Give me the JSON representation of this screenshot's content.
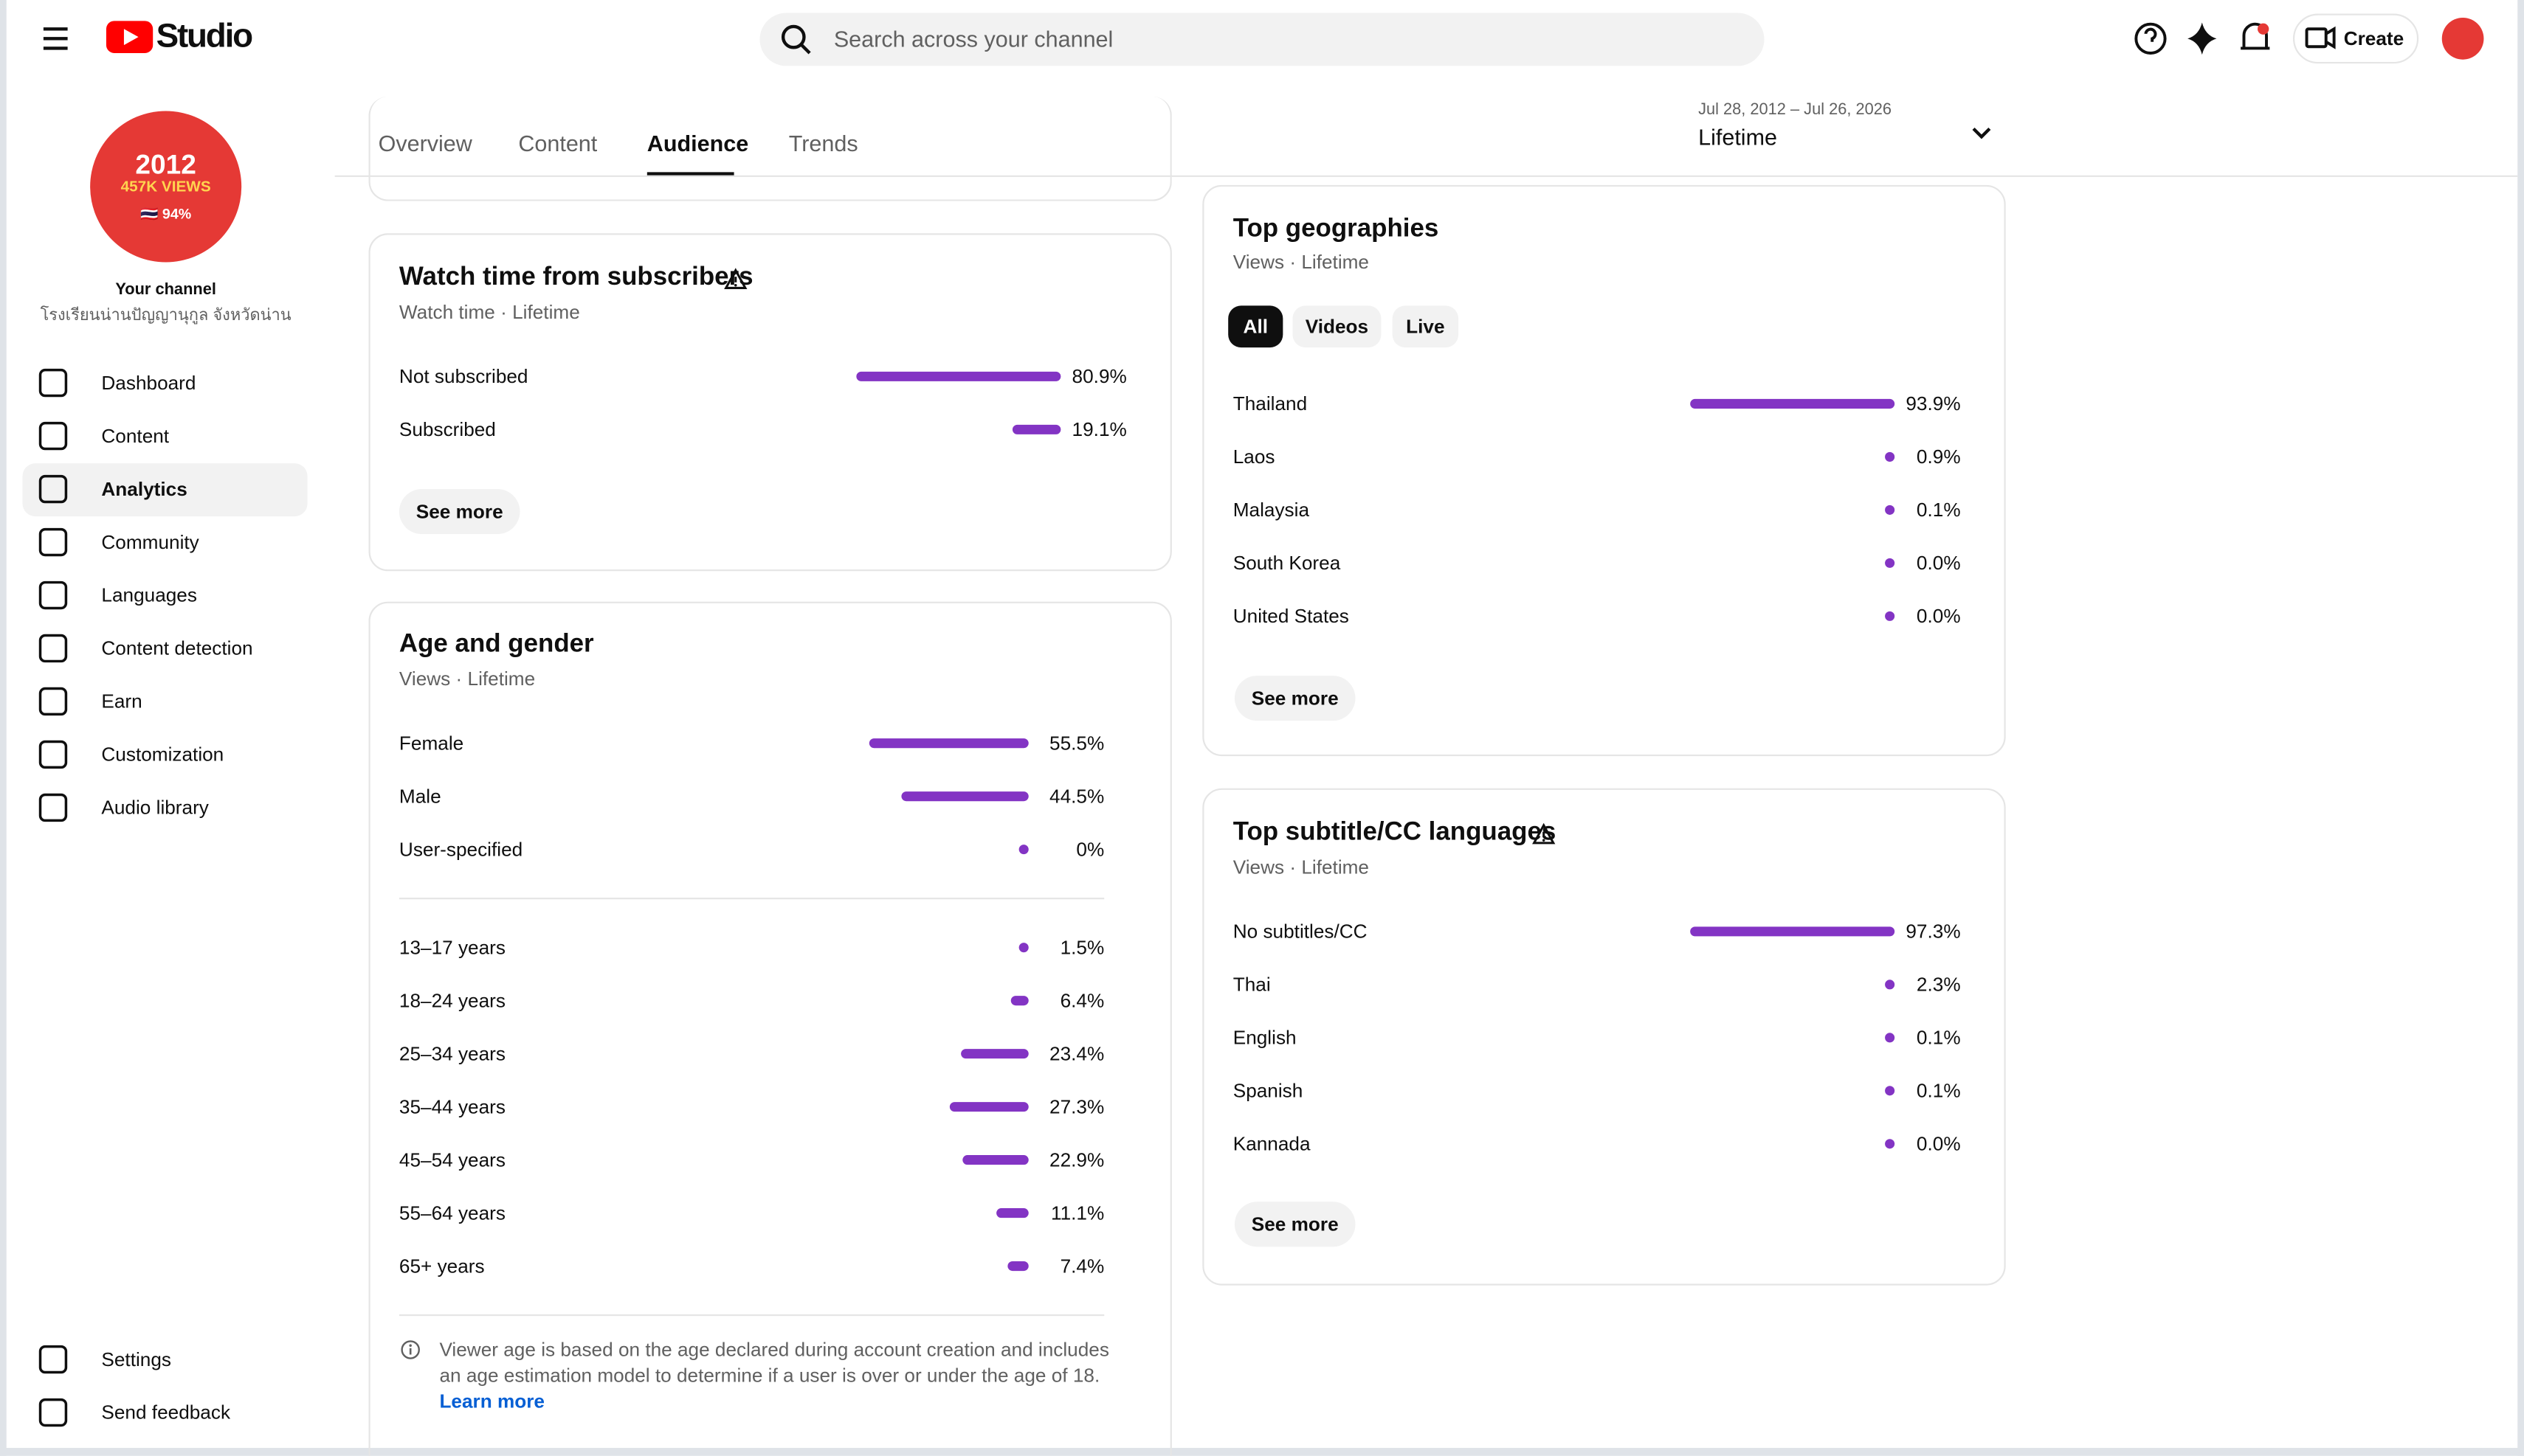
{
  "header": {
    "logo": "Studio",
    "search_placeholder": "Search across your channel",
    "create": "Create"
  },
  "sidebar": {
    "avatar_lines": [
      "2012",
      "457K VIEWS",
      "🇹🇭 94%"
    ],
    "channel_label": "Your channel",
    "channel_name": "โรงเรียนน่านปัญญานุกูล จังหวัดน่าน",
    "nav": [
      "Dashboard",
      "Content",
      "Analytics",
      "Community",
      "Languages",
      "Content detection",
      "Earn",
      "Customization",
      "Audio library"
    ],
    "footer_nav": [
      "Settings",
      "Send feedback"
    ]
  },
  "tabs": [
    "Overview",
    "Content",
    "Audience",
    "Trends"
  ],
  "date_range": {
    "range": "Jul 28, 2012 – Jul 26, 2026",
    "period": "Lifetime"
  },
  "watch_time_subscribers": {
    "title": "Watch time from subscribers",
    "subtitle": "Watch time · Lifetime",
    "rows": [
      {
        "label": "Not subscribed",
        "value": 80.9,
        "value_label": "80.9%"
      },
      {
        "label": "Subscribed",
        "value": 19.1,
        "value_label": "19.1%"
      }
    ],
    "button": "See more"
  },
  "age_gender": {
    "title": "Age and gender",
    "subtitle": "Views · Lifetime",
    "gender_rows": [
      {
        "label": "Female",
        "value": 55.5,
        "value_label": "55.5%"
      },
      {
        "label": "Male",
        "value": 44.5,
        "value_label": "44.5%"
      },
      {
        "label": "User-specified",
        "value": 0,
        "value_label": "0%"
      }
    ],
    "age_rows": [
      {
        "label": "13–17 years",
        "value": 1.5,
        "value_label": "1.5%"
      },
      {
        "label": "18–24 years",
        "value": 6.4,
        "value_label": "6.4%"
      },
      {
        "label": "25–34 years",
        "value": 23.4,
        "value_label": "23.4%"
      },
      {
        "label": "35–44 years",
        "value": 27.3,
        "value_label": "27.3%"
      },
      {
        "label": "45–54 years",
        "value": 22.9,
        "value_label": "22.9%"
      },
      {
        "label": "55–64 years",
        "value": 11.1,
        "value_label": "11.1%"
      },
      {
        "label": "65+ years",
        "value": 7.4,
        "value_label": "7.4%"
      }
    ],
    "note": [
      "Viewer age is based on the age declared during account creation and includes",
      "an age estimation model to determine if a user is over or under the age of 18."
    ],
    "link": "Learn more"
  },
  "top_geographies": {
    "title": "Top geographies",
    "subtitle": "Views · Lifetime",
    "filters": [
      "All",
      "Videos",
      "Live"
    ],
    "rows": [
      {
        "label": "Thailand",
        "value": 93.9,
        "value_label": "93.9%"
      },
      {
        "label": "Laos",
        "value": 0.9,
        "value_label": "0.9%"
      },
      {
        "label": "Malaysia",
        "value": 0.1,
        "value_label": "0.1%"
      },
      {
        "label": "South Korea",
        "value": 0.0,
        "value_label": "0.0%"
      },
      {
        "label": "United States",
        "value": 0.0,
        "value_label": "0.0%"
      }
    ],
    "button": "See more"
  },
  "top_subtitles": {
    "title": "Top subtitle/CC languages",
    "subtitle": "Views · Lifetime",
    "rows": [
      {
        "label": "No subtitles/CC",
        "value": 97.3,
        "value_label": "97.3%"
      },
      {
        "label": "Thai",
        "value": 2.3,
        "value_label": "2.3%"
      },
      {
        "label": "English",
        "value": 0.1,
        "value_label": "0.1%"
      },
      {
        "label": "Spanish",
        "value": 0.1,
        "value_label": "0.1%"
      },
      {
        "label": "Kannada",
        "value": 0.0,
        "value_label": "0.0%"
      }
    ],
    "button": "See more"
  }
}
